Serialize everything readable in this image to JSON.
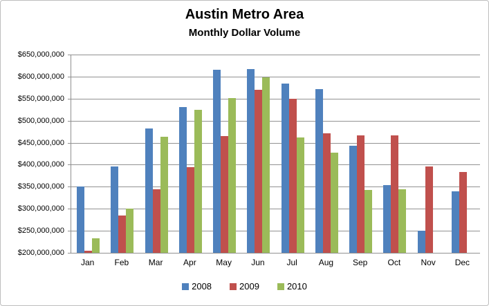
{
  "title": "Austin Metro Area",
  "subtitle": "Monthly Dollar Volume",
  "chart_data": {
    "type": "bar",
    "categories": [
      "Jan",
      "Feb",
      "Mar",
      "Apr",
      "May",
      "Jun",
      "Jul",
      "Aug",
      "Sep",
      "Oct",
      "Nov",
      "Dec"
    ],
    "series": [
      {
        "name": "2008",
        "color": "#4F81BD",
        "values": [
          350000000,
          396000000,
          483000000,
          531000000,
          615000000,
          617000000,
          584000000,
          571000000,
          443000000,
          353000000,
          250000000,
          340000000
        ]
      },
      {
        "name": "2009",
        "color": "#C0504D",
        "values": [
          205000000,
          285000000,
          344000000,
          394000000,
          465000000,
          570000000,
          550000000,
          472000000,
          467000000,
          467000000,
          396000000,
          383000000
        ]
      },
      {
        "name": "2010",
        "color": "#9BBB59",
        "values": [
          233000000,
          300000000,
          464000000,
          525000000,
          552000000,
          598000000,
          462000000,
          427000000,
          343000000,
          345000000,
          null,
          null
        ]
      }
    ],
    "ylim": [
      200000000,
      650000000
    ],
    "y_tick_step": 50000000,
    "y_tick_labels": [
      "$650,000,000",
      "$600,000,000",
      "$550,000,000",
      "$500,000,000",
      "$450,000,000",
      "$400,000,000",
      "$350,000,000",
      "$300,000,000",
      "$250,000,000",
      "$200,000,000"
    ],
    "grid": true,
    "legend_position": "bottom",
    "legend_labels": [
      "2008",
      "2009",
      "2010"
    ]
  }
}
